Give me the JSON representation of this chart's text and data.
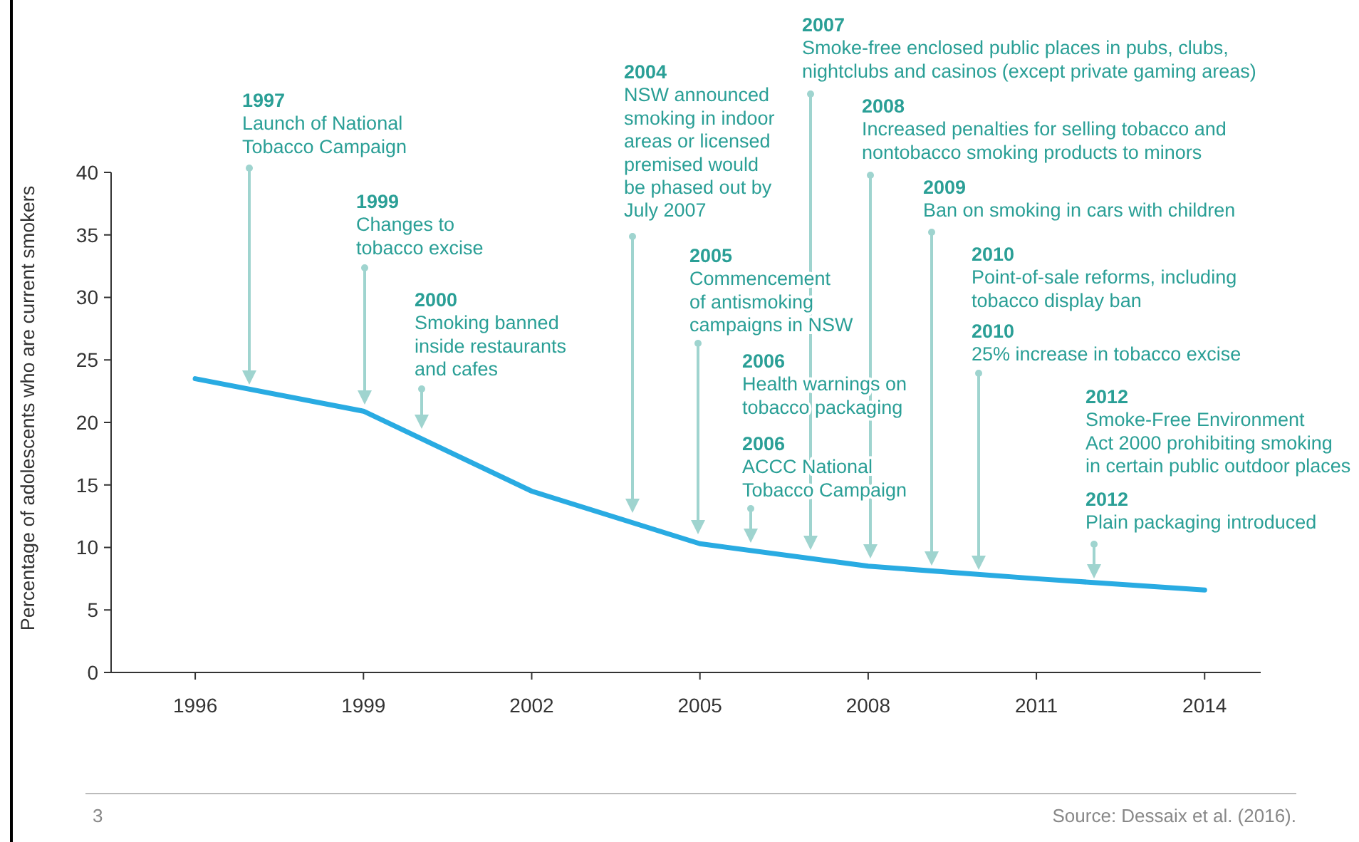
{
  "chart_data": {
    "type": "line",
    "ylabel": "Percentage of adolescents who are current smokers",
    "x": [
      1996,
      1999,
      2002,
      2005,
      2008,
      2011,
      2014
    ],
    "series": [
      {
        "color": "#29abe2",
        "values": [
          23.5,
          20.9,
          14.5,
          10.3,
          8.5,
          7.5,
          6.6
        ]
      }
    ],
    "xlim": [
      1994.5,
      2015
    ],
    "xticks": [
      1996,
      1999,
      2002,
      2005,
      2008,
      2011,
      2014
    ],
    "ylim": [
      0,
      40
    ],
    "yticks": [
      0,
      5,
      10,
      15,
      20,
      25,
      30,
      35,
      40
    ],
    "marker": "none",
    "line_style": "solid",
    "annotations": [
      "1997\nLaunch of National\nTobacco Campaign",
      "1999\nChanges to\ntobacco excise",
      "2000\nSmoking banned\ninside restaurants\nand cafes",
      "2004\nNSW announced\nsmoking in indoor\nareas or licensed\npremised would\nbe phased out by\nJuly 2007",
      "2005\nCommencement\nof antismoking\ncampaigns in NSW",
      "2006\nHealth warnings on\ntobacco packaging",
      "2006\nACCC National\nTobacco Campaign",
      "2007\nSmoke-free enclosed public places in pubs, clubs,\nnightclubs and casinos (except private gaming areas)",
      "2008\nIncreased penalties for selling tobacco and\nnontobacco smoking products to minors",
      "2009\nBan on smoking in cars with children",
      "2010\nPoint-of-sale reforms, including\ntobacco display ban",
      "2010\n25% increase in tobacco excise",
      "2012\nSmoke-Free Environment\nAct 2000 prohibiting smoking\nin certain public outdoor places",
      "2012\nPlain packaging introduced",
      "3",
      "Source: Dessaix et al. (2016)."
    ]
  }
}
